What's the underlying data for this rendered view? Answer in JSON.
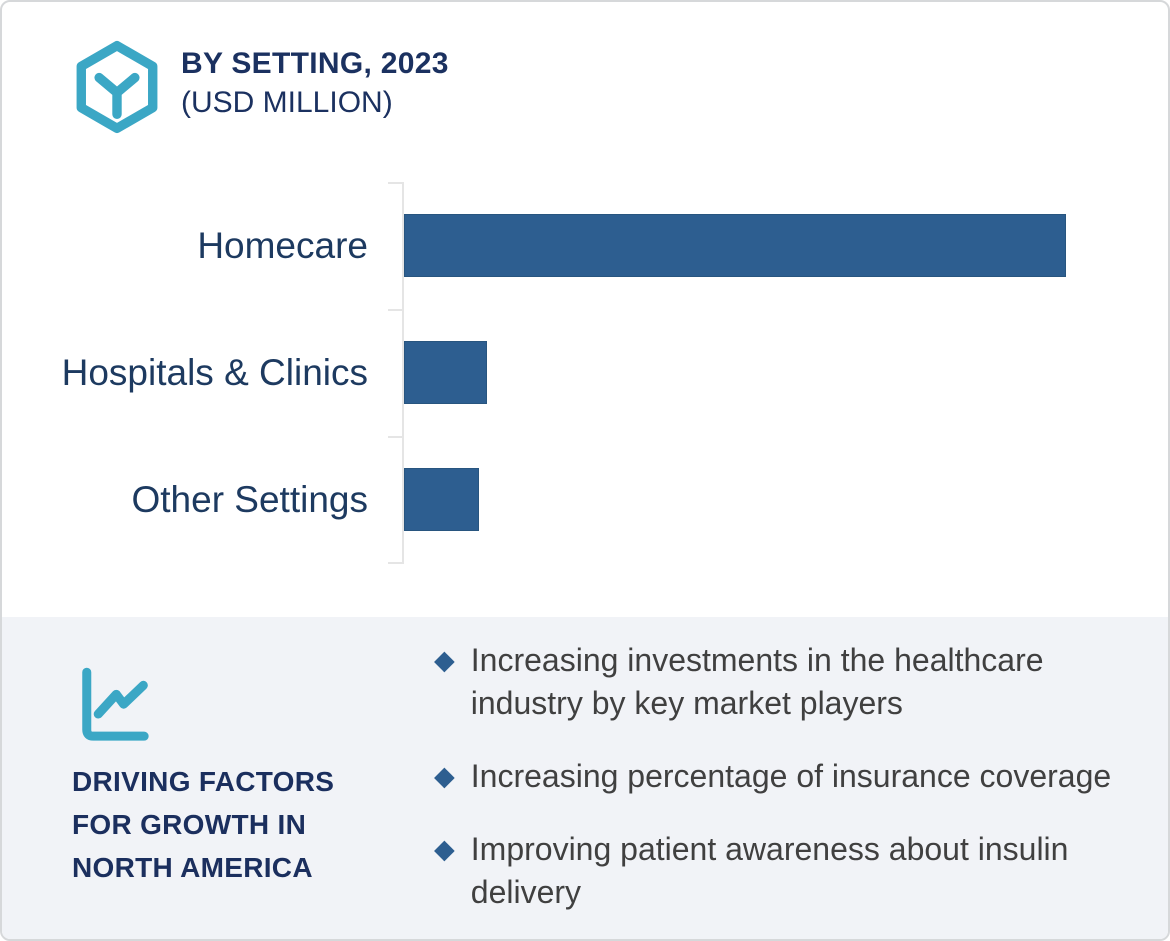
{
  "header": {
    "logo_icon": "hexagon-y-logo",
    "title_line1": "BY SETTING, 2023",
    "title_line2": "(USD MILLION)"
  },
  "chart_data": {
    "type": "bar",
    "orientation": "horizontal",
    "title": "BY SETTING, 2023 (USD MILLION)",
    "categories": [
      "Homecare",
      "Hospitals & Clinics",
      "Other Settings"
    ],
    "values_pct_of_max": [
      100,
      12.5,
      11.3
    ],
    "value_axis": {
      "labels_visible": false,
      "note": "no numeric ticks or gridlines shown; bar lengths estimated as percent of largest bar"
    },
    "legend": "none",
    "gridlines": false,
    "bar_color": "#2d5e90"
  },
  "driving_factors": {
    "icon": "line-chart-icon",
    "heading": "DRIVING FACTORS\nFOR GROWTH IN\nNORTH AMERICA",
    "bullet_marker": "◆",
    "items": [
      "Increasing investments in the healthcare\nindustry by key market players",
      "Increasing percentage of insurance coverage",
      "Improving patient awareness about insulin\ndelivery"
    ]
  },
  "colors": {
    "accent_teal": "#3ba7c5",
    "bar_blue": "#2d5e90",
    "navy": "#1b3160",
    "panel_bg": "#f1f3f7",
    "bullet_text": "#404040",
    "axis_gray": "#e5e5e5"
  }
}
